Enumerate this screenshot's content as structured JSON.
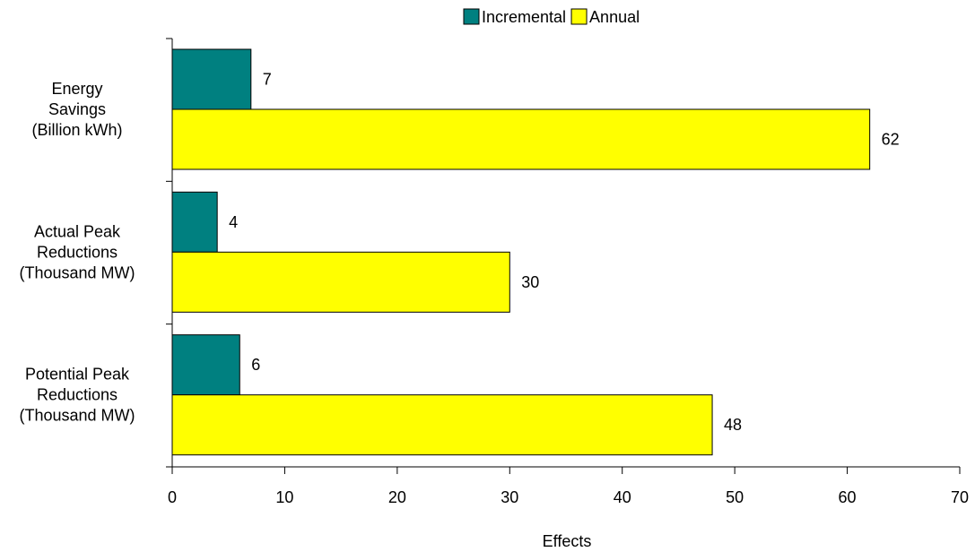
{
  "chart_data": {
    "type": "bar",
    "orientation": "horizontal",
    "categories": [
      [
        "Energy",
        "Savings",
        "(Billion kWh)"
      ],
      [
        "Actual Peak",
        "Reductions",
        "(Thousand MW)"
      ],
      [
        "Potential Peak",
        "Reductions",
        "(Thousand MW)"
      ]
    ],
    "series": [
      {
        "name": "Incremental",
        "values": [
          7,
          4,
          6
        ],
        "color": "#008080"
      },
      {
        "name": "Annual",
        "values": [
          62,
          30,
          48
        ],
        "color": "#FFFF00"
      }
    ],
    "xlabel": "Effects",
    "ylabel": "",
    "xlim": [
      0,
      70
    ],
    "xticks": [
      0,
      10,
      20,
      30,
      40,
      50,
      60,
      70
    ],
    "grid": false,
    "legend": "top-center",
    "data_labels": true
  }
}
